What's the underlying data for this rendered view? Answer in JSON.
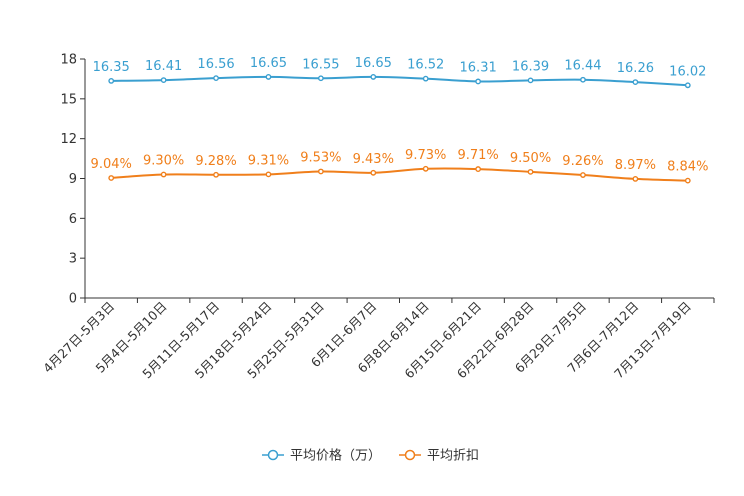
{
  "chart_data": {
    "type": "line",
    "title": "",
    "xlabel": "",
    "ylabel": "",
    "ylim": [
      0,
      18
    ],
    "yticks": [
      0,
      3,
      6,
      9,
      12,
      15,
      18
    ],
    "grid": false,
    "legend_position": "bottom-center",
    "categories": [
      "4月27日-5月3日",
      "5月4日-5月10日",
      "5月11日-5月17日",
      "5月18日-5月24日",
      "5月25日-5月31日",
      "6月1日-6月7日",
      "6月8日-6月14日",
      "6月15日-6月21日",
      "6月22日-6月28日",
      "6月29日-7月5日",
      "7月6日-7月12日",
      "7月13日-7月19日"
    ],
    "series": [
      {
        "name": "平均价格（万）",
        "color": "#3a9fd0",
        "values": [
          16.35,
          16.41,
          16.56,
          16.65,
          16.55,
          16.65,
          16.52,
          16.31,
          16.39,
          16.44,
          16.26,
          16.02
        ],
        "labels": [
          "16.35",
          "16.41",
          "16.56",
          "16.65",
          "16.55",
          "16.65",
          "16.52",
          "16.31",
          "16.39",
          "16.44",
          "16.26",
          "16.02"
        ]
      },
      {
        "name": "平均折扣",
        "color": "#f07f1b",
        "values": [
          9.04,
          9.3,
          9.28,
          9.31,
          9.53,
          9.43,
          9.73,
          9.71,
          9.5,
          9.26,
          8.97,
          8.84
        ],
        "labels": [
          "9.04%",
          "9.30%",
          "9.28%",
          "9.31%",
          "9.53%",
          "9.43%",
          "9.73%",
          "9.71%",
          "9.50%",
          "9.26%",
          "8.97%",
          "8.84%"
        ]
      }
    ]
  }
}
